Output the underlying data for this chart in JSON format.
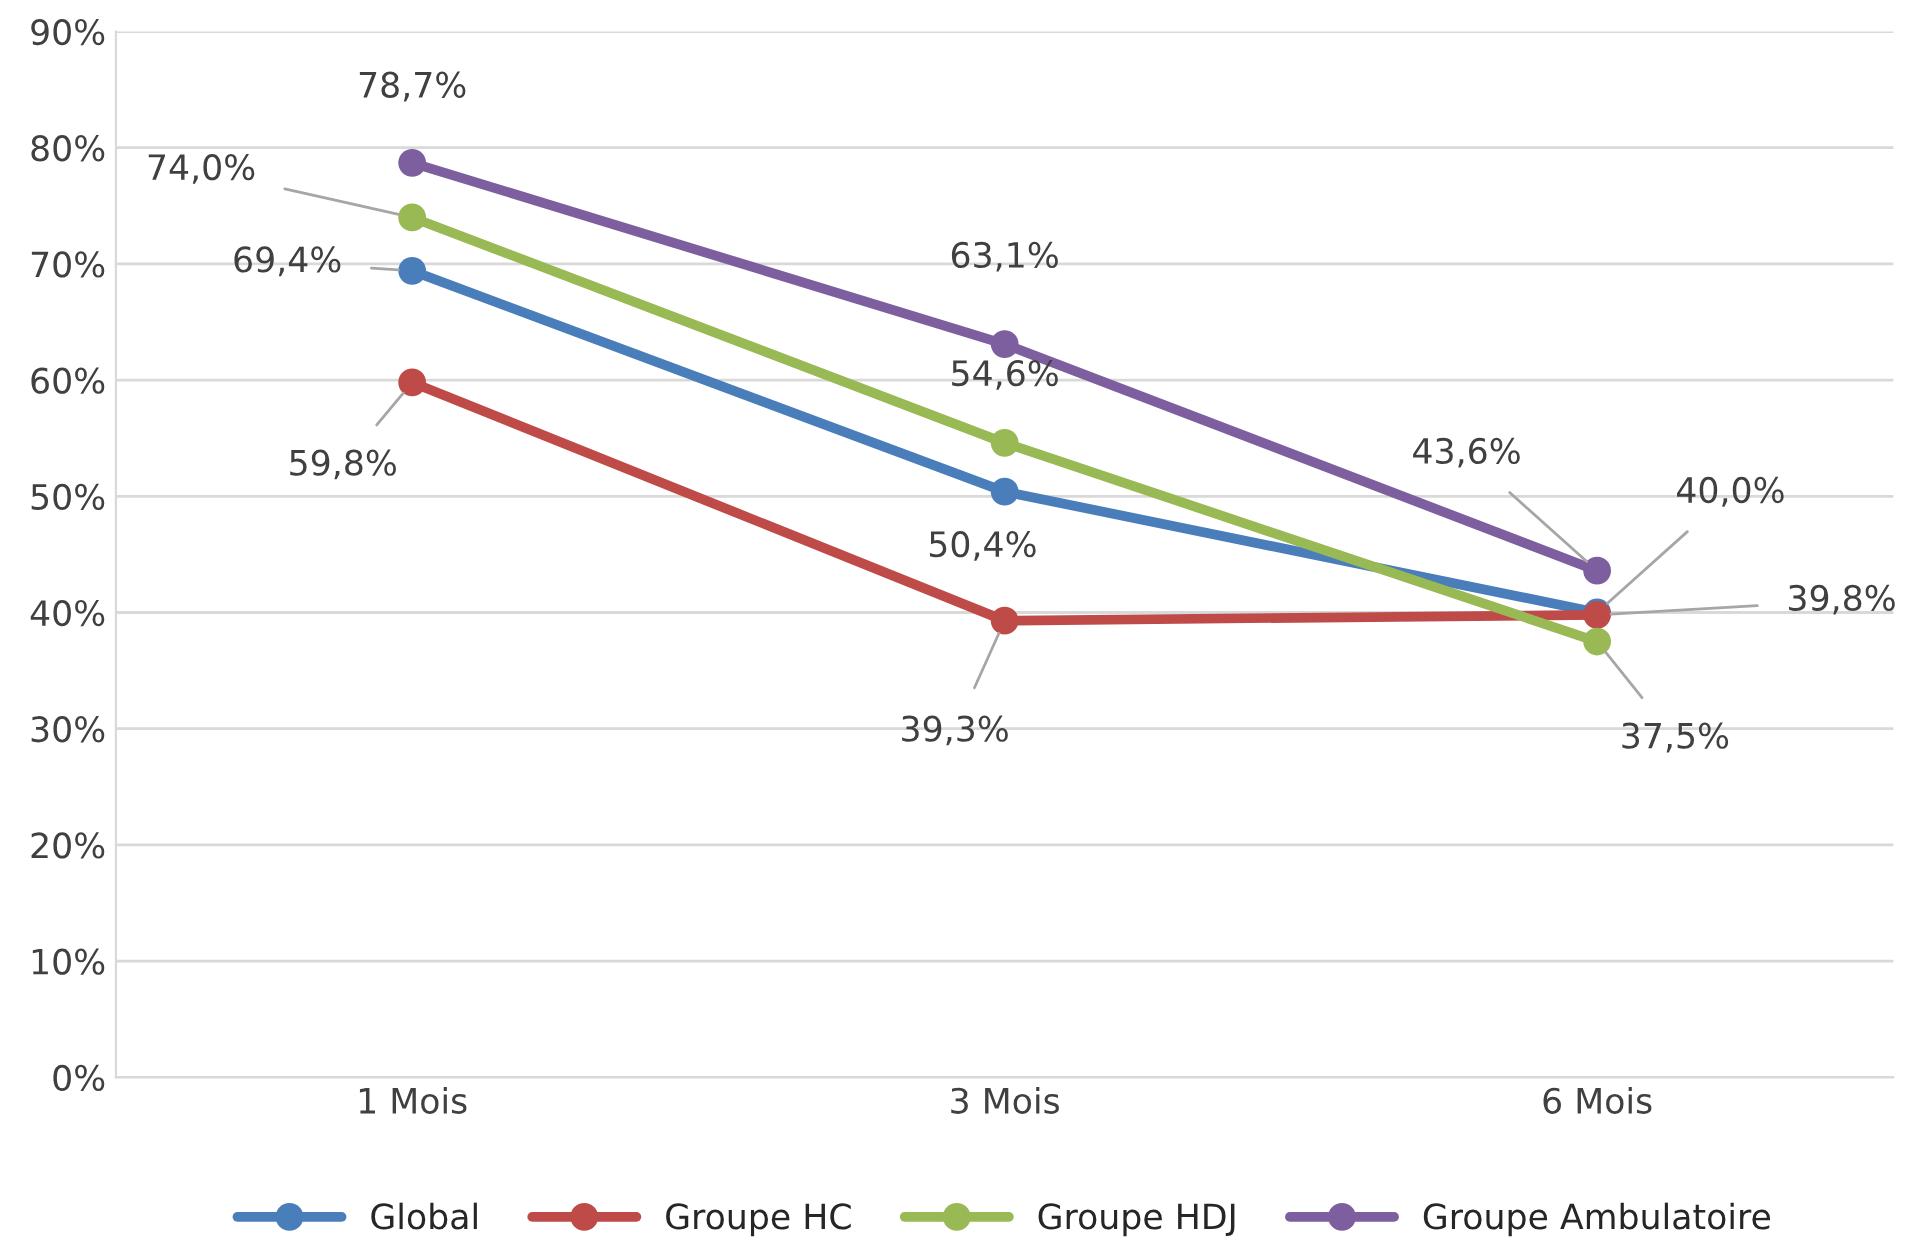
{
  "chart_data": {
    "type": "line",
    "categories": [
      "1 Mois",
      "3 Mois",
      "6 Mois"
    ],
    "series": [
      {
        "name": "Global",
        "color": "#4a7ebb",
        "values": [
          69.4,
          50.4,
          40.0
        ],
        "value_labels": [
          "69,4%",
          "50,4%",
          "40,0%"
        ]
      },
      {
        "name": "Groupe HC",
        "color": "#be4b48",
        "values": [
          59.8,
          39.3,
          39.8
        ],
        "value_labels": [
          "59,8%",
          "39,3%",
          "39,8%"
        ]
      },
      {
        "name": "Groupe HDJ",
        "color": "#98b954",
        "values": [
          74.0,
          54.6,
          37.5
        ],
        "value_labels": [
          "74,0%",
          "54,6%",
          "37,5%"
        ]
      },
      {
        "name": "Groupe Ambulatoire",
        "color": "#7d5fa0",
        "values": [
          78.7,
          63.1,
          43.6
        ],
        "value_labels": [
          "78,7%",
          "63,1%",
          "43,6%"
        ]
      }
    ],
    "ylim": [
      0,
      90
    ],
    "yticks": [
      {
        "value": 0,
        "label": "0%"
      },
      {
        "value": 10,
        "label": "10%"
      },
      {
        "value": 20,
        "label": "20%"
      },
      {
        "value": 30,
        "label": "30%"
      },
      {
        "value": 40,
        "label": "40%"
      },
      {
        "value": 50,
        "label": "50%"
      },
      {
        "value": 60,
        "label": "60%"
      },
      {
        "value": 70,
        "label": "70%"
      },
      {
        "value": 80,
        "label": "80%"
      },
      {
        "value": 90,
        "label": "90%"
      }
    ],
    "grid": "y",
    "legend": "bottom",
    "marker": "circle",
    "line_style": "solid"
  }
}
